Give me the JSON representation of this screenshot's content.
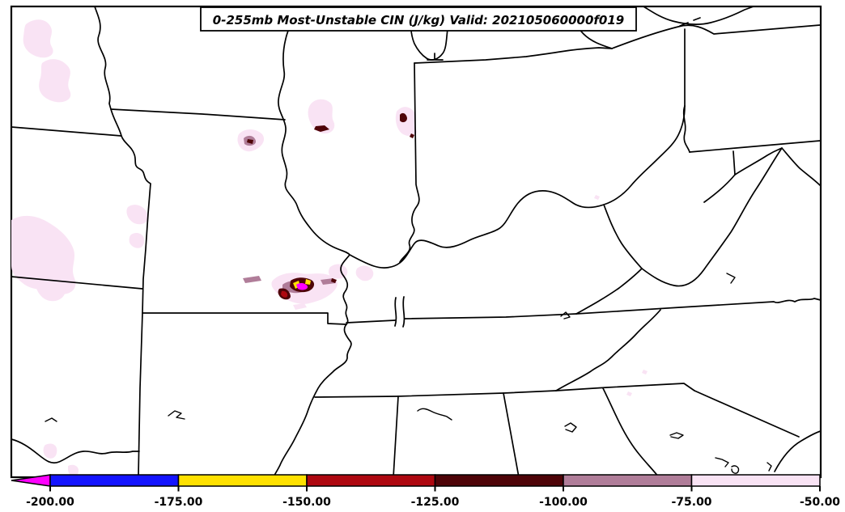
{
  "title": {
    "text": "0-255mb Most-Unstable CIN (J/kg) Valid: 202105060000f019"
  },
  "chart_data": {
    "type": "heatmap",
    "subtype": "filled-contour-weather-map",
    "title": "0-255mb Most-Unstable CIN (J/kg) Valid: 202105060000f019",
    "variable": "Most-Unstable CIN",
    "layer": "0-255mb",
    "units": "J/kg",
    "valid_label": "Valid: 202105060000f019",
    "region": "Central and eastern United States with state borders, Lake Michigan southern tip, Lake Erie, Mississippi River and Ohio River",
    "grid": false,
    "colorbar": {
      "orientation": "horizontal",
      "position": "bottom",
      "tick_labels": [
        "-200.00",
        "-175.00",
        "-150.00",
        "-125.00",
        "-100.00",
        "-75.00",
        "-50.00"
      ],
      "tick_values": [
        -200,
        -175,
        -150,
        -125,
        -100,
        -75,
        -50
      ],
      "under_arrow": {
        "label": "< -200",
        "color": "#FF00FF"
      },
      "segments": [
        {
          "from": -200,
          "to": -175,
          "color": "#1414FF"
        },
        {
          "from": -175,
          "to": -150,
          "color": "#FFE100"
        },
        {
          "from": -150,
          "to": -125,
          "color": "#AE0810"
        },
        {
          "from": -125,
          "to": -100,
          "color": "#4E0408"
        },
        {
          "from": -100,
          "to": -75,
          "color": "#B07D99"
        },
        {
          "from": -75,
          "to": -50,
          "color": "#F9E3F4"
        }
      ]
    },
    "levels": {
      "pale": "#F9E3F4",
      "mauve": "#B07D99",
      "maroon": "#4E0408",
      "red": "#AE0810",
      "yellow": "#FFE100",
      "magenta": "#FF00FF",
      "blue": "#1414FF"
    },
    "shaded_areas": [
      {
        "location": "central Missouri",
        "min_bin": "< -200 J/kg",
        "description": "strongest CIN cluster: magenta core ringed by yellow, dark maroon and mauve inside pale pink"
      },
      {
        "location": "north-central Illinois",
        "min_bin": "-125 to -100 J/kg",
        "description": "two pale pink patches each containing a small dark maroon streak"
      },
      {
        "location": "northeast Missouri near Mississippi River",
        "min_bin": "-125 to -100 J/kg",
        "description": "pale pink patch with mauve and maroon dot"
      },
      {
        "location": "eastern Nebraska / western Iowa",
        "min_bin": "-75 to -50 J/kg",
        "description": "scattered pale pink blobs"
      },
      {
        "location": "central and eastern Kansas",
        "min_bin": "-75 to -50 J/kg",
        "description": "broad pale pink areas"
      },
      {
        "location": "southeast Oklahoma",
        "min_bin": "-75 to -50 J/kg",
        "description": "small pale pink spots"
      },
      {
        "location": "western Virginia / North Carolina",
        "min_bin": "-75 to -50 J/kg",
        "description": "tiny pale pink specks"
      }
    ]
  },
  "colors": {
    "border": "#000000",
    "background": "#FFFFFF"
  }
}
